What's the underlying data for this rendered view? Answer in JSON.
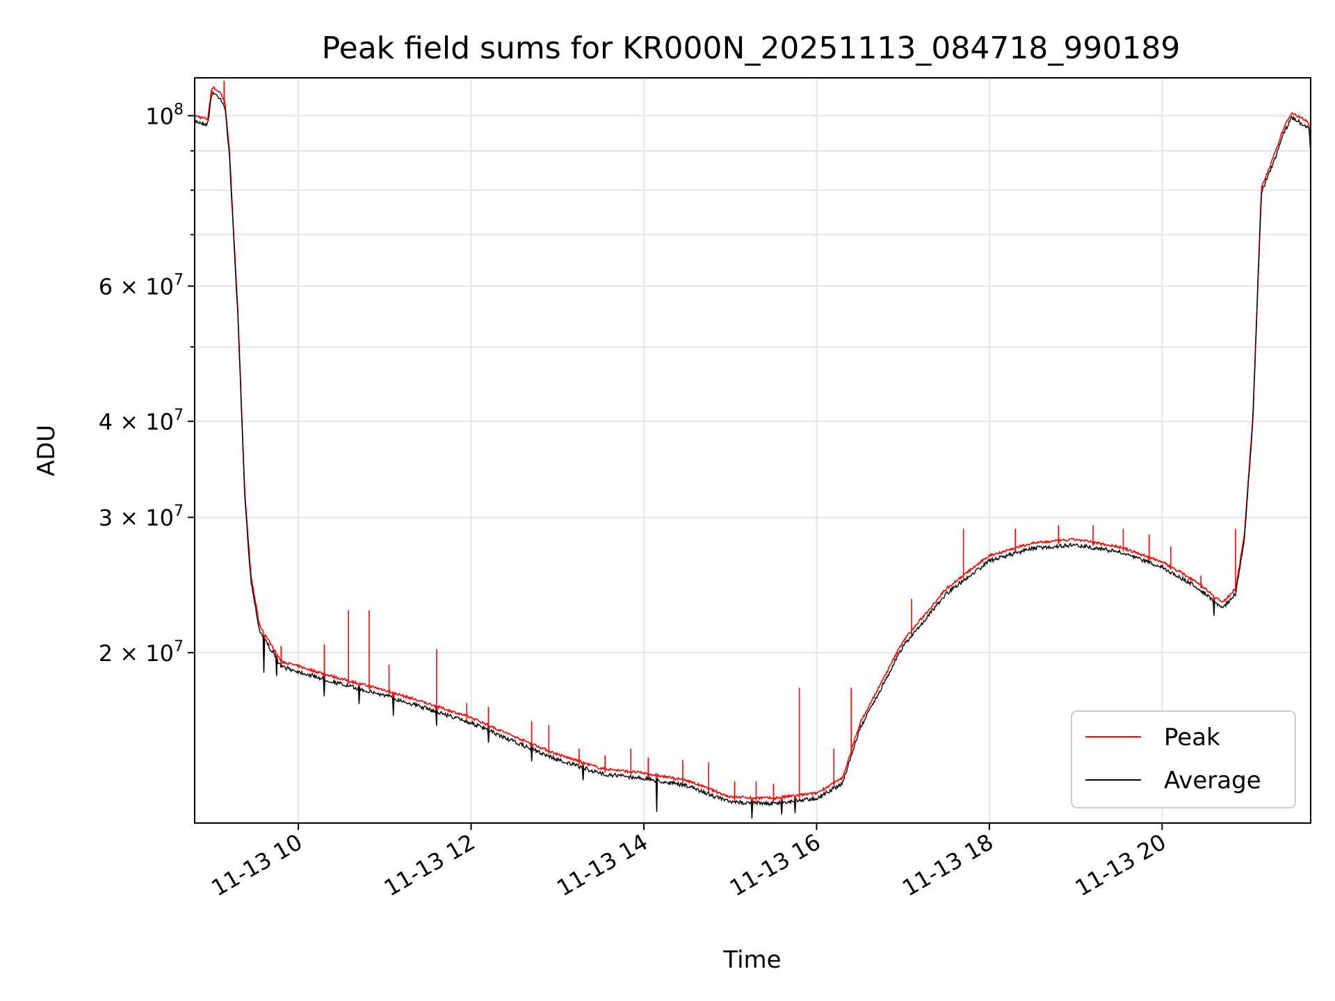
{
  "chart_data": {
    "type": "line",
    "title": "Peak field sums for KR000N_20251113_084718_990189",
    "xlabel": "Time",
    "ylabel": "ADU",
    "yscale": "log",
    "grid": true,
    "xlim_hours": [
      8.8,
      21.72
    ],
    "ylim": [
      12000000,
      112000000
    ],
    "x_ticks": [
      {
        "value": 10,
        "label": "11-13 10"
      },
      {
        "value": 12,
        "label": "11-13 12"
      },
      {
        "value": 14,
        "label": "11-13 14"
      },
      {
        "value": 16,
        "label": "11-13 16"
      },
      {
        "value": 18,
        "label": "11-13 18"
      },
      {
        "value": 20,
        "label": "11-13 20"
      }
    ],
    "y_ticks": [
      {
        "value": 100000000,
        "base": "10",
        "exp": "8"
      },
      {
        "value": 60000000,
        "base": "6 × 10",
        "exp": "7"
      },
      {
        "value": 40000000,
        "base": "4 × 10",
        "exp": "7"
      },
      {
        "value": 30000000,
        "base": "3 × 10",
        "exp": "7"
      },
      {
        "value": 20000000,
        "base": "2 × 10",
        "exp": "7"
      }
    ],
    "y_minor_grid": [
      90000000,
      80000000,
      70000000,
      50000000
    ],
    "legend": {
      "position": "lower-right",
      "entries": [
        {
          "label": "Peak",
          "color": "#ff0000"
        },
        {
          "label": "Average",
          "color": "#000000"
        }
      ]
    },
    "series": [
      {
        "name": "Average",
        "color": "#000000",
        "baseline": [
          [
            8.8,
            99000000
          ],
          [
            8.95,
            98000000
          ],
          [
            9.0,
            108000000
          ],
          [
            9.1,
            106000000
          ],
          [
            9.15,
            103000000
          ],
          [
            9.2,
            90000000
          ],
          [
            9.3,
            55000000
          ],
          [
            9.38,
            32000000
          ],
          [
            9.45,
            25000000
          ],
          [
            9.55,
            21500000
          ],
          [
            9.8,
            19300000
          ],
          [
            10.5,
            18300000
          ],
          [
            11.0,
            17700000
          ],
          [
            11.5,
            17000000
          ],
          [
            12.0,
            16300000
          ],
          [
            12.5,
            15400000
          ],
          [
            13.0,
            14600000
          ],
          [
            13.5,
            14000000
          ],
          [
            14.0,
            13800000
          ],
          [
            14.5,
            13500000
          ],
          [
            15.0,
            12850000
          ],
          [
            15.5,
            12800000
          ],
          [
            16.0,
            13000000
          ],
          [
            16.3,
            13600000
          ],
          [
            16.5,
            16000000
          ],
          [
            17.0,
            20500000
          ],
          [
            17.5,
            24000000
          ],
          [
            18.0,
            26500000
          ],
          [
            18.5,
            27500000
          ],
          [
            19.0,
            27800000
          ],
          [
            19.5,
            27200000
          ],
          [
            20.0,
            26000000
          ],
          [
            20.4,
            24500000
          ],
          [
            20.7,
            23000000
          ],
          [
            20.85,
            24000000
          ],
          [
            20.95,
            28000000
          ],
          [
            21.05,
            40000000
          ],
          [
            21.15,
            80000000
          ],
          [
            21.3,
            88000000
          ],
          [
            21.4,
            95000000
          ],
          [
            21.5,
            100000000
          ],
          [
            21.7,
            97000000
          ],
          [
            21.72,
            90000000
          ]
        ],
        "dips": [
          [
            9.6,
            19000000
          ],
          [
            9.75,
            18700000
          ],
          [
            10.3,
            17600000
          ],
          [
            10.7,
            17300000
          ],
          [
            11.1,
            16700000
          ],
          [
            11.6,
            16200000
          ],
          [
            12.2,
            15300000
          ],
          [
            12.7,
            14600000
          ],
          [
            13.3,
            13700000
          ],
          [
            14.15,
            12500000
          ],
          [
            14.8,
            13100000
          ],
          [
            15.25,
            12300000
          ],
          [
            15.6,
            12400000
          ],
          [
            15.75,
            12450000
          ],
          [
            20.6,
            22600000
          ]
        ]
      },
      {
        "name": "Peak",
        "color": "#ff0000",
        "spikes": [
          [
            9.0,
            106000000
          ],
          [
            9.14,
            111000000
          ],
          [
            9.8,
            20400000
          ],
          [
            10.3,
            20500000
          ],
          [
            10.58,
            22700000
          ],
          [
            10.82,
            22700000
          ],
          [
            11.05,
            19300000
          ],
          [
            11.6,
            20200000
          ],
          [
            11.95,
            17200000
          ],
          [
            12.2,
            17000000
          ],
          [
            12.7,
            16300000
          ],
          [
            12.9,
            16100000
          ],
          [
            13.25,
            15000000
          ],
          [
            13.55,
            14700000
          ],
          [
            13.85,
            15000000
          ],
          [
            14.05,
            14600000
          ],
          [
            14.45,
            14500000
          ],
          [
            14.75,
            14400000
          ],
          [
            15.05,
            13600000
          ],
          [
            15.3,
            13600000
          ],
          [
            15.5,
            13500000
          ],
          [
            15.8,
            18000000
          ],
          [
            16.2,
            15000000
          ],
          [
            16.4,
            18000000
          ],
          [
            17.1,
            23500000
          ],
          [
            17.7,
            29000000
          ],
          [
            18.3,
            29000000
          ],
          [
            18.8,
            29300000
          ],
          [
            19.2,
            29300000
          ],
          [
            19.55,
            29000000
          ],
          [
            19.85,
            28500000
          ],
          [
            20.1,
            27500000
          ],
          [
            20.45,
            25200000
          ],
          [
            20.85,
            29000000
          ]
        ]
      }
    ]
  }
}
